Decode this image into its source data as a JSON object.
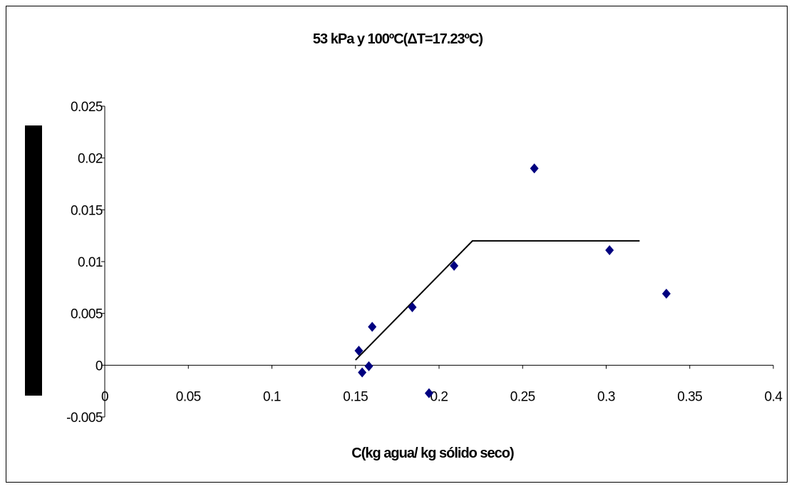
{
  "chart_data": {
    "type": "scatter",
    "title": "53 kPa y 100ºC(ΔT=17.23ºC)",
    "xlabel": "C(kg agua/ kg sólido seco)",
    "ylabel": "",
    "xlim": [
      0,
      0.4
    ],
    "ylim": [
      -0.005,
      0.025
    ],
    "x_ticks": [
      "0",
      "0.05",
      "0.1",
      "0.15",
      "0.2",
      "0.25",
      "0.3",
      "0.35",
      "0.4"
    ],
    "y_ticks": [
      "-0.005",
      "0",
      "0.005",
      "0.01",
      "0.015",
      "0.02",
      "0.025"
    ],
    "x_tick_values": [
      0,
      0.05,
      0.1,
      0.15,
      0.2,
      0.25,
      0.3,
      0.35,
      0.4
    ],
    "y_tick_values": [
      -0.005,
      0,
      0.005,
      0.01,
      0.015,
      0.02,
      0.025
    ],
    "grid": false,
    "legend": "none",
    "marker_color": "#000080",
    "line_color": "#000000",
    "points": [
      {
        "x": 0.152,
        "y": 0.0014
      },
      {
        "x": 0.154,
        "y": -0.0007
      },
      {
        "x": 0.158,
        "y": -0.0001
      },
      {
        "x": 0.16,
        "y": 0.0037
      },
      {
        "x": 0.184,
        "y": 0.0056
      },
      {
        "x": 0.194,
        "y": -0.0027
      },
      {
        "x": 0.209,
        "y": 0.0096
      },
      {
        "x": 0.257,
        "y": 0.019
      },
      {
        "x": 0.302,
        "y": 0.0111
      },
      {
        "x": 0.336,
        "y": 0.0069
      }
    ],
    "fit_line": [
      {
        "x": 0.15,
        "y": 0.0005
      },
      {
        "x": 0.22,
        "y": 0.012
      },
      {
        "x": 0.32,
        "y": 0.012
      }
    ]
  }
}
